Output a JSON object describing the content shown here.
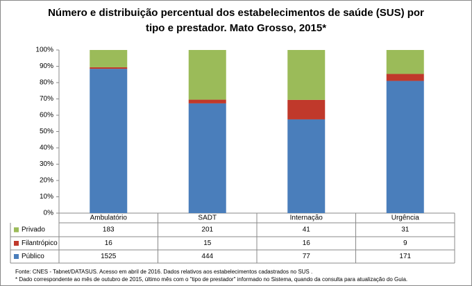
{
  "chart_data": {
    "type": "bar",
    "stack": "percent",
    "title": "Número e distribuição percentual dos estabelecimentos de saúde (SUS) por tipo e prestador. Mato Grosso, 2015*",
    "categories": [
      "Ambulatório",
      "SADT",
      "Internação",
      "Urgência"
    ],
    "series": [
      {
        "name": "Público",
        "color": "#4a7ebb",
        "values": [
          1525,
          444,
          77,
          171
        ]
      },
      {
        "name": "Filantrópico",
        "color": "#c0392b",
        "values": [
          16,
          15,
          16,
          9
        ]
      },
      {
        "name": "Privado",
        "color": "#9bbb59",
        "values": [
          183,
          201,
          41,
          31
        ]
      }
    ],
    "ylim": [
      0,
      100
    ],
    "yticks": [
      {
        "value": 0,
        "label": "0%"
      },
      {
        "value": 10,
        "label": "10%"
      },
      {
        "value": 20,
        "label": "20%"
      },
      {
        "value": 30,
        "label": "30%"
      },
      {
        "value": 40,
        "label": "40%"
      },
      {
        "value": 50,
        "label": "50%"
      },
      {
        "value": 60,
        "label": "60%"
      },
      {
        "value": 70,
        "label": "70%"
      },
      {
        "value": 80,
        "label": "80%"
      },
      {
        "value": 90,
        "label": "90%"
      },
      {
        "value": 100,
        "label": "100%"
      }
    ],
    "grid": false,
    "source": "Fonte: CNES - Tabnet/DATASUS. Acesso em abril de 2016.  Dados relativos aos estabelecimentos cadastrados no SUS .",
    "note": "* Dado correspondente ao mês de  outubro de 2015, último mês com o \"tipo de prestador\" informado no Sistema, quando da consulta para atualização do Guia."
  }
}
